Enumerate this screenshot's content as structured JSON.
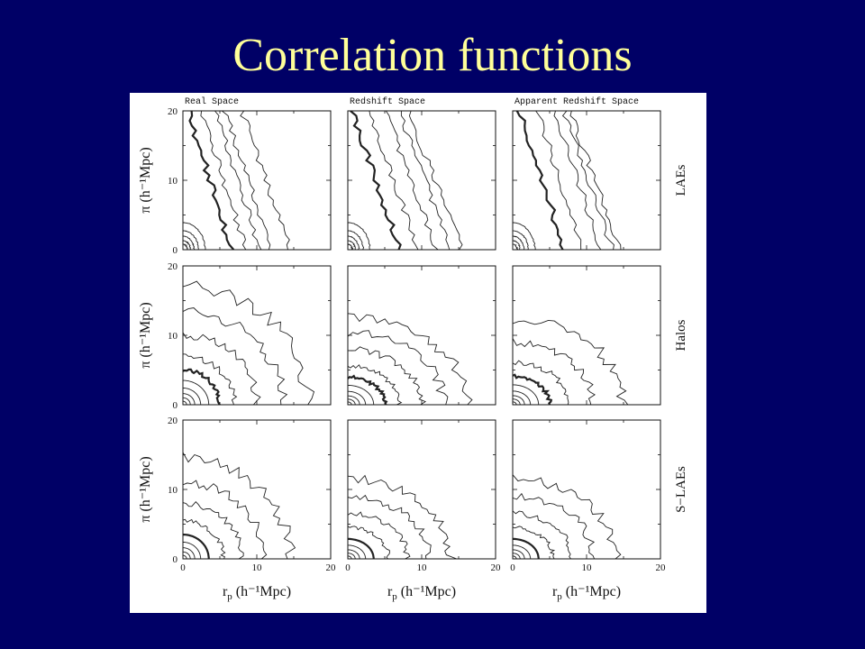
{
  "slide": {
    "title": "Correlation functions"
  },
  "chart_data": {
    "type": "contour",
    "column_titles": [
      "Real Space",
      "Redshift Space",
      "Apparent Redshift Space"
    ],
    "row_labels": [
      "LAEs",
      "Halos",
      "S−LAEs"
    ],
    "xlabel": "r",
    "xlabel_sub": "p",
    "xlabel_unit": "(h⁻¹Mpc)",
    "ylabel": "π  (h⁻¹Mpc)",
    "xlim": [
      0,
      20
    ],
    "ylim": [
      0,
      20
    ],
    "x_ticks": [
      0,
      10,
      20
    ],
    "y_ticks": [
      0,
      10,
      20
    ],
    "panels": [
      {
        "row": "LAEs",
        "column": "Real Space",
        "shape": "elongated",
        "levels_rp_at_pi0": [
          0.6,
          1.0,
          1.5,
          2.1,
          3.0,
          6.5,
          8.5,
          10.5,
          12.0,
          14.5
        ],
        "slope": -0.24,
        "bold_level_index": 5
      },
      {
        "row": "LAEs",
        "column": "Redshift Space",
        "shape": "elongated",
        "levels_rp_at_pi0": [
          0.6,
          1.0,
          1.5,
          2.1,
          3.0,
          7.0,
          9.5,
          12.0,
          14.0,
          15.5
        ],
        "slope": -0.27,
        "bold_level_index": 5
      },
      {
        "row": "LAEs",
        "column": "Apparent Redshift Space",
        "shape": "elongated",
        "levels_rp_at_pi0": [
          0.6,
          1.0,
          1.5,
          2.1,
          3.0,
          7.0,
          9.5,
          12.0,
          13.5,
          14.5
        ],
        "slope": -0.25,
        "bold_level_index": 5
      },
      {
        "row": "Halos",
        "column": "Real Space",
        "shape": "round",
        "levels_r": [
          0.5,
          1.0,
          1.6,
          2.4,
          3.5,
          5.0,
          7.0,
          10.0,
          13.5,
          17.0
        ],
        "aspect": 1.0,
        "bold_level_index": 5
      },
      {
        "row": "Halos",
        "column": "Redshift Space",
        "shape": "squashed",
        "levels_r": [
          0.5,
          1.0,
          1.6,
          2.4,
          3.5,
          5.0,
          7.0,
          10.0,
          13.0,
          16.0
        ],
        "aspect": 0.8,
        "bold_level_index": 5
      },
      {
        "row": "Halos",
        "column": "Apparent Redshift Space",
        "shape": "squashed",
        "levels_r": [
          0.5,
          1.0,
          1.6,
          2.4,
          3.5,
          5.0,
          7.5,
          11.0,
          15.0
        ],
        "aspect": 0.82,
        "bold_level_index": 5
      },
      {
        "row": "S−LAEs",
        "column": "Real Space",
        "shape": "round",
        "levels_r": [
          0.5,
          1.0,
          1.6,
          2.4,
          3.5,
          5.5,
          8.0,
          11.0,
          14.5
        ],
        "aspect": 1.0,
        "bold_level_index": 4
      },
      {
        "row": "S−LAEs",
        "column": "Redshift Space",
        "shape": "squashed",
        "levels_r": [
          0.5,
          1.0,
          1.6,
          2.4,
          3.5,
          5.5,
          8.0,
          11.0,
          14.0
        ],
        "aspect": 0.82,
        "bold_level_index": 4
      },
      {
        "row": "S−LAEs",
        "column": "Apparent Redshift Space",
        "shape": "squashed",
        "levels_r": [
          0.5,
          1.0,
          1.6,
          2.4,
          3.5,
          5.5,
          8.0,
          11.0,
          14.0
        ],
        "aspect": 0.82,
        "bold_level_index": 4
      }
    ],
    "grid": false,
    "legend": "none"
  }
}
